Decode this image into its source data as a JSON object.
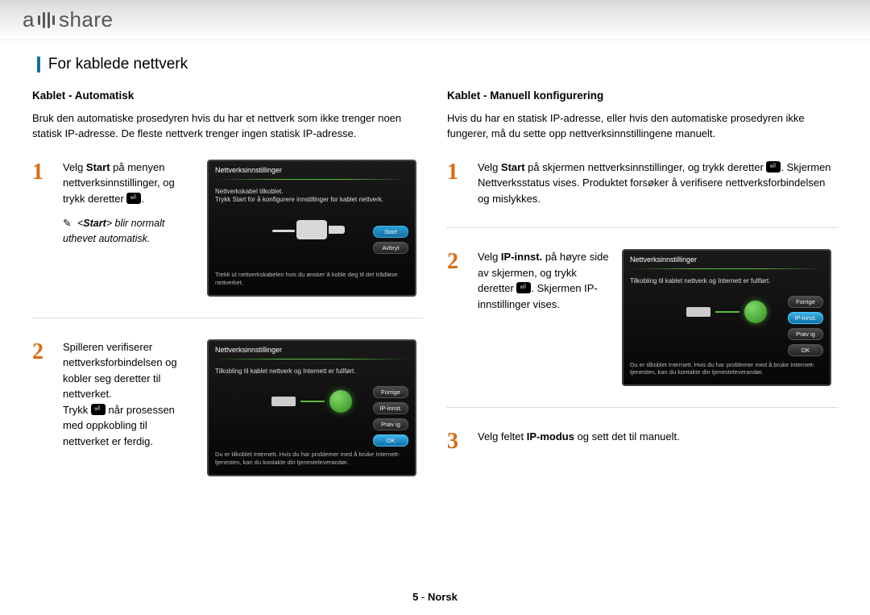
{
  "brand": {
    "pre": "a",
    "post": "share"
  },
  "page_title": "For kablede nettverk",
  "left": {
    "section_title": "Kablet - Automatisk",
    "intro": "Bruk den automatiske prosedyren hvis du har et nettverk som ikke trenger noen statisk IP-adresse. De fleste nettverk trenger ingen statisk IP-adresse.",
    "step1": {
      "num": "1",
      "text_a": "Velg ",
      "text_b": "Start",
      "text_c": " på menyen nettverksinnstillinger, og trykk deretter ",
      "note_pre": "<",
      "note_bold": "Start",
      "note_post": "> blir normalt uthevet automatisk.",
      "tv": {
        "title": "Nettverksinnstillinger",
        "msg1": "Nettverkskabel tilkoblet.",
        "msg2": "Trykk Start for å konfigurere innstillinger for kablet nettverk.",
        "bottom": "Trekk ut nettverkskabelen hvis du ønsker å koble deg til det trådløse nettverket.",
        "btn_start": "Start",
        "btn_cancel": "Avbryt"
      }
    },
    "step2": {
      "num": "2",
      "text_a": "Spilleren verifiserer nettverksforbindelsen og kobler seg deretter til nettverket.",
      "text_b": "Trykk ",
      "text_c": " når prosessen med oppkobling til nettverket er ferdig.",
      "tv": {
        "title": "Nettverksinnstillinger",
        "msg": "Tilkobling til kablet nettverk og Internett er fullført.",
        "bottom": "Du er tilkoblet Internett. Hvis du har problemer med å bruke Internett-tjenesten, kan du kontakte din tjenesteleverandør.",
        "btn1": "Forrige",
        "btn2": "IP-innst.",
        "btn3": "Prøv ig",
        "btn4": "OK"
      }
    }
  },
  "right": {
    "section_title": "Kablet - Manuell konfigurering",
    "intro": "Hvis du har en statisk IP-adresse, eller hvis den automatiske prosedyren ikke fungerer, må du sette opp nettverksinnstillingene manuelt.",
    "step1": {
      "num": "1",
      "text_a": "Velg ",
      "text_b": "Start",
      "text_c": " på skjermen nettverksinnstillinger, og trykk deretter ",
      "text_d": ". Skjermen Nettverksstatus vises. Produktet forsøker å verifisere nettverksforbindelsen og mislykkes."
    },
    "step2": {
      "num": "2",
      "text_a": "Velg ",
      "text_b": "IP-innst.",
      "text_c": " på høyre side av skjermen, og trykk deretter ",
      "text_d": ". Skjermen IP-innstillinger vises.",
      "tv": {
        "title": "Nettverksinnstillinger",
        "msg": "Tilkobling til kablet nettverk og Internett er fullført.",
        "bottom": "Du er tilkoblet Internett. Hvis du har problemer med å bruke Internett-tjenesten, kan du kontakte din tjenesteleverandør.",
        "btn1": "Forrige",
        "btn2": "IP-innst.",
        "btn3": "Prøv ig",
        "btn4": "OK"
      }
    },
    "step3": {
      "num": "3",
      "text_a": "Velg feltet ",
      "text_b": "IP-modus",
      "text_c": " og sett det til manuelt."
    }
  },
  "footer": {
    "page": "5",
    "lang": "Norsk"
  }
}
